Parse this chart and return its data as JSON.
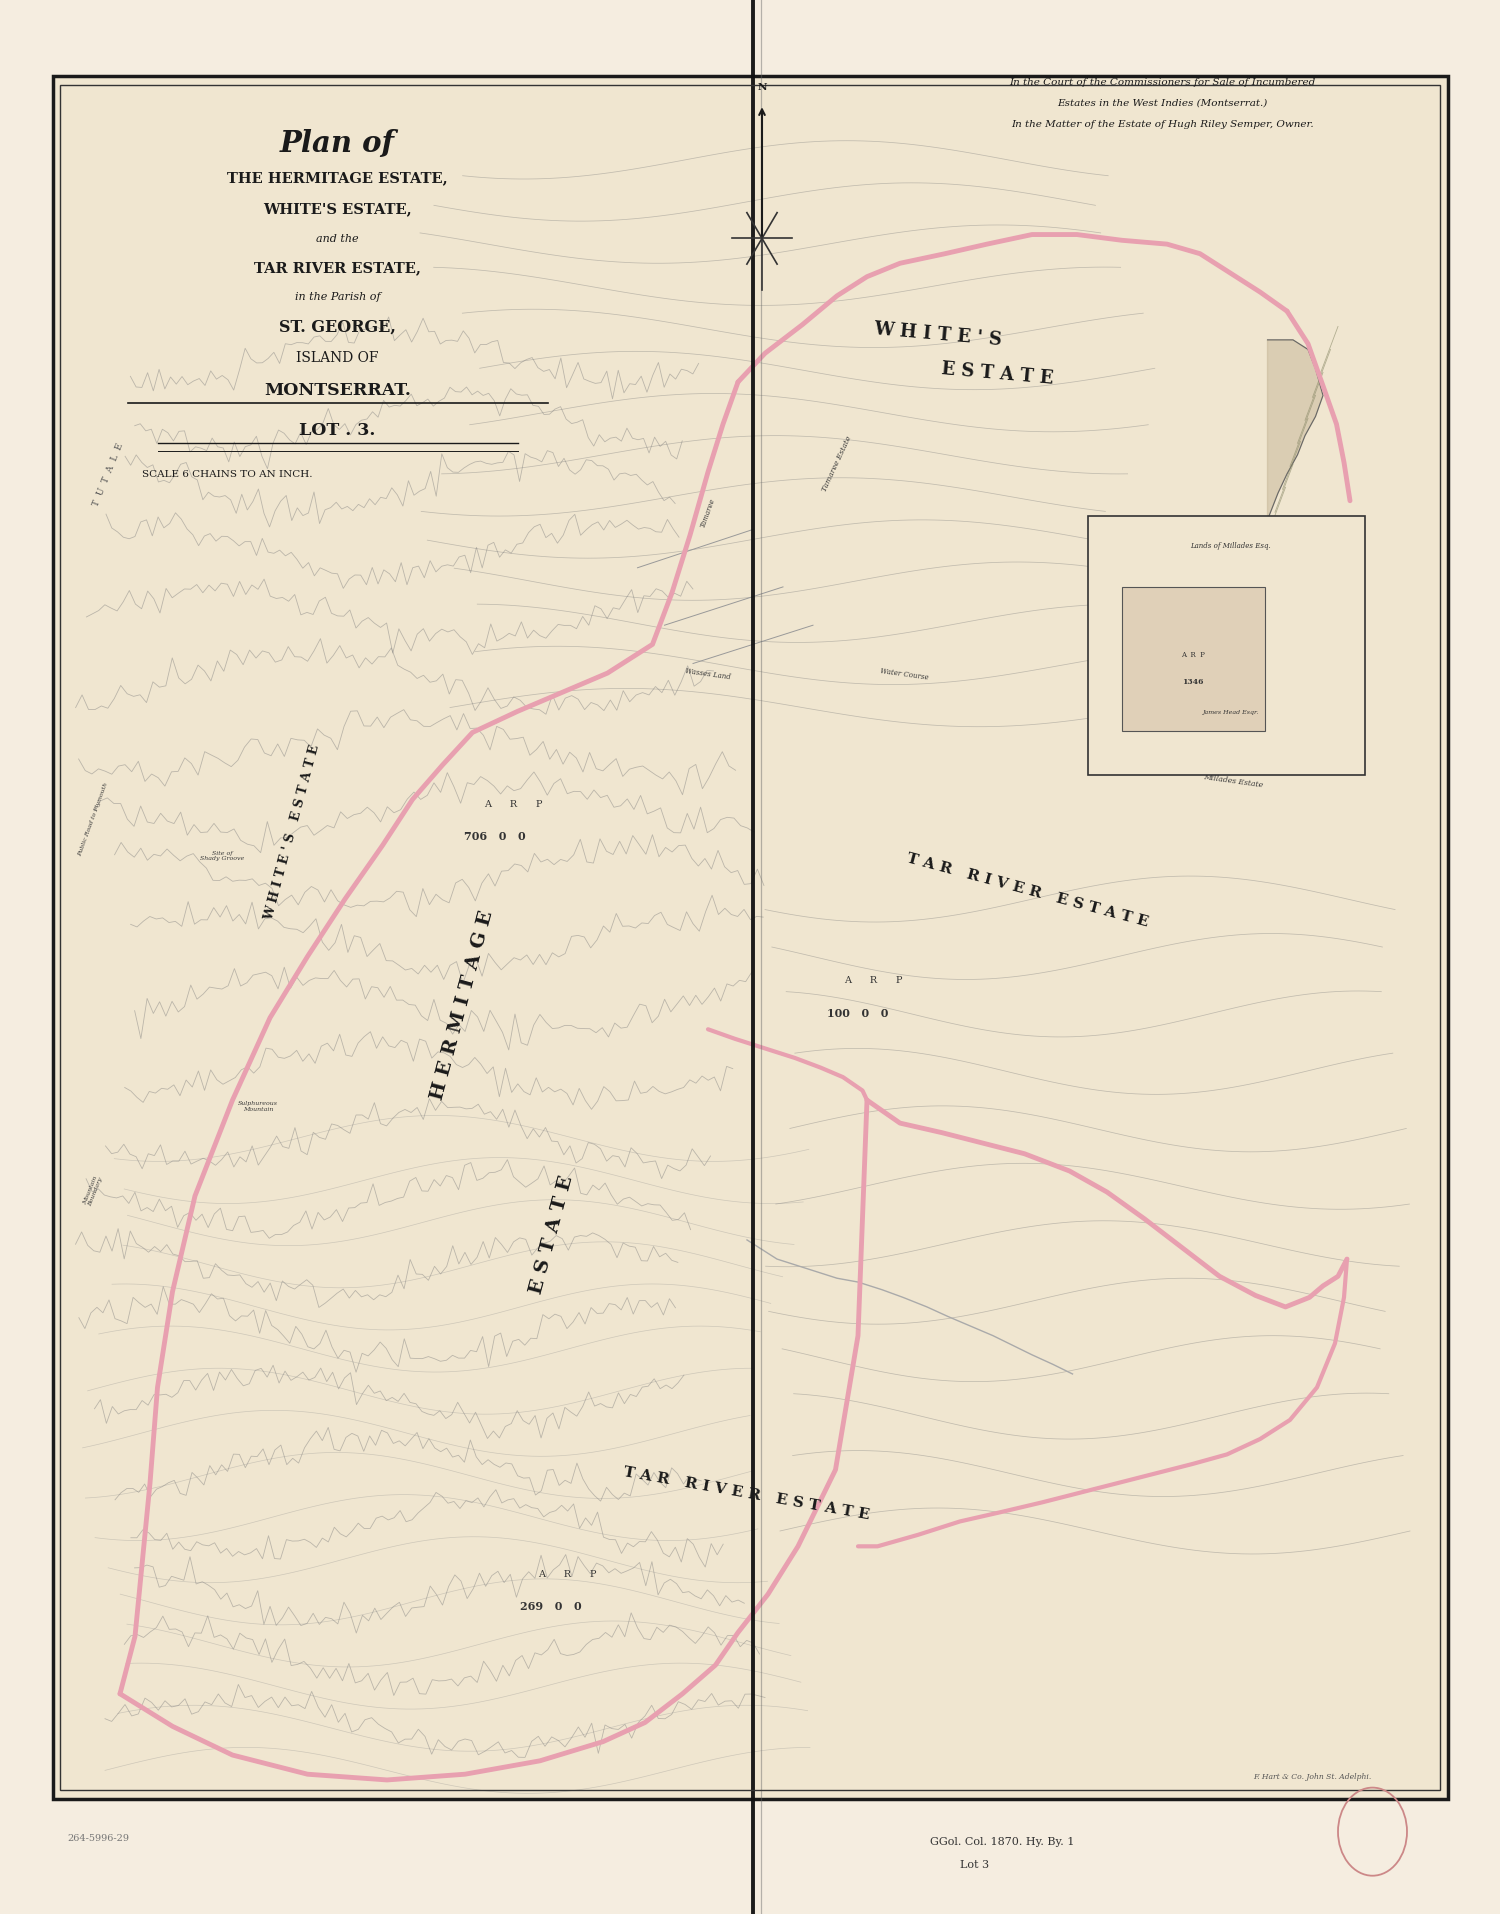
{
  "page_bg": "#f5ede0",
  "map_bg": "#f0e6d0",
  "border_color": "#1a1a1a",
  "title_line1": "Plan of",
  "title_line2": "THE HERMITAGE ESTATE,",
  "title_line3": "WHITE'S ESTATE,",
  "title_line4": "and the",
  "title_line5": "TAR RIVER ESTATE,",
  "title_line6": "in the Parish of",
  "title_line7": "ST. GEORGE,",
  "title_line8": "ISLAND OF",
  "title_line9": "MONTSERRAT.",
  "title_line10": "LOT . 3.",
  "scale_text": "SCALE 6 CHAINS TO AN INCH.",
  "court_text_1": "In the Court of the Commissioners for Sale of Incumbered",
  "court_text_2": "Estates in the West Indies (Montserrat.)",
  "court_text_3": "In the Matter of the Estate of Hugh Riley Semper, Owner.",
  "pink_color": "#e8a0b0",
  "text_color": "#1a1a1a",
  "printer_text": "F. Hart & Co. John St. Adelphi.",
  "bottom_text1": "GGol. Col. 1870. Hy. By. 1",
  "bottom_text2": "Lot 3",
  "ref_text": "264-5996-29"
}
